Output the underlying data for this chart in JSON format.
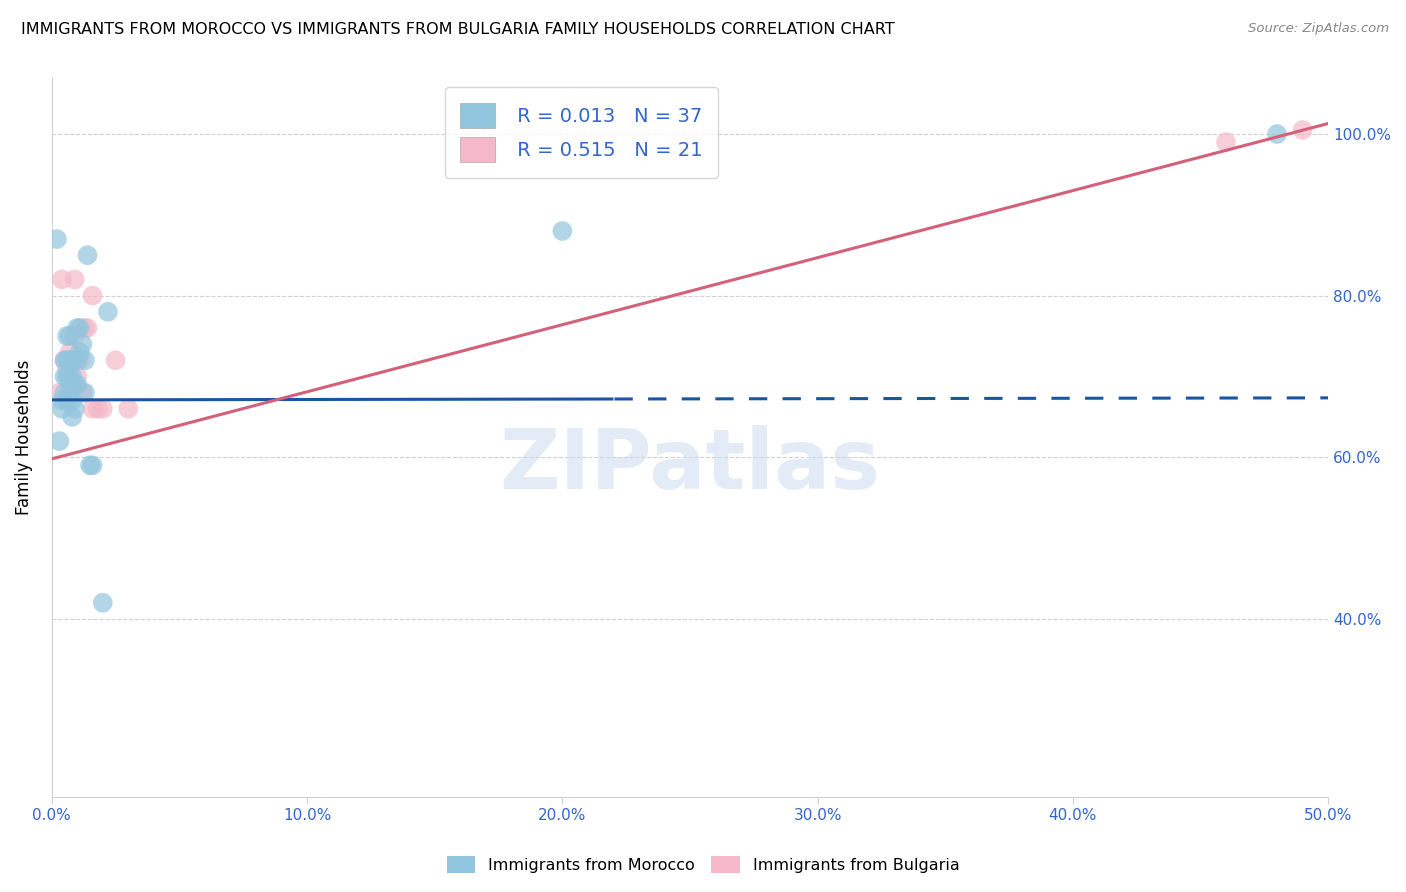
{
  "title": "IMMIGRANTS FROM MOROCCO VS IMMIGRANTS FROM BULGARIA FAMILY HOUSEHOLDS CORRELATION CHART",
  "source": "Source: ZipAtlas.com",
  "ylabel_label": "Family Households",
  "xmin": 0.0,
  "xmax": 0.5,
  "ymin": 0.18,
  "ymax": 1.07,
  "watermark": "ZIPatlas",
  "morocco_R": 0.013,
  "morocco_N": 37,
  "morocco_color": "#92c5de",
  "morocco_line_color": "#1a56a0",
  "morocco_line_solid_end": 0.22,
  "bulgaria_R": 0.515,
  "bulgaria_N": 21,
  "bulgaria_color": "#f4b8c8",
  "bulgaria_line_color": "#d4607a",
  "legend_morocco_label": "Immigrants from Morocco",
  "legend_bulgaria_label": "Immigrants from Bulgaria",
  "morocco_x": [
    0.002,
    0.003,
    0.004,
    0.004,
    0.005,
    0.005,
    0.005,
    0.006,
    0.006,
    0.006,
    0.006,
    0.007,
    0.007,
    0.007,
    0.007,
    0.008,
    0.008,
    0.008,
    0.008,
    0.009,
    0.009,
    0.009,
    0.01,
    0.01,
    0.01,
    0.011,
    0.011,
    0.012,
    0.013,
    0.013,
    0.014,
    0.015,
    0.016,
    0.02,
    0.022,
    0.2,
    0.48
  ],
  "morocco_y": [
    0.87,
    0.62,
    0.66,
    0.67,
    0.68,
    0.7,
    0.72,
    0.67,
    0.7,
    0.72,
    0.75,
    0.68,
    0.7,
    0.72,
    0.75,
    0.65,
    0.67,
    0.7,
    0.72,
    0.66,
    0.69,
    0.72,
    0.69,
    0.72,
    0.76,
    0.73,
    0.76,
    0.74,
    0.68,
    0.72,
    0.85,
    0.59,
    0.59,
    0.42,
    0.78,
    0.88,
    1.0
  ],
  "bulgaria_x": [
    0.003,
    0.004,
    0.005,
    0.006,
    0.007,
    0.008,
    0.009,
    0.009,
    0.01,
    0.011,
    0.012,
    0.013,
    0.014,
    0.016,
    0.016,
    0.018,
    0.02,
    0.025,
    0.03,
    0.46,
    0.49
  ],
  "bulgaria_y": [
    0.68,
    0.82,
    0.72,
    0.71,
    0.73,
    0.69,
    0.75,
    0.82,
    0.7,
    0.72,
    0.68,
    0.76,
    0.76,
    0.66,
    0.8,
    0.66,
    0.66,
    0.72,
    0.66,
    0.99,
    1.005
  ],
  "morocco_line_y_intercept": 0.671,
  "morocco_line_slope": 0.005,
  "bulgaria_line_y_intercept": 0.598,
  "bulgaria_line_slope": 0.83
}
